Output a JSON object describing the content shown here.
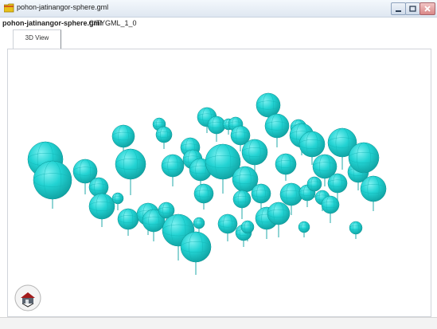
{
  "window": {
    "title": "pohon-jatinangor-sphere.gml",
    "app_icon": "folder-icon",
    "controls": [
      "minimize-icon",
      "maximize-icon",
      "close-icon"
    ]
  },
  "document": {
    "file_name": "pohon-jatinangor-sphere.gml",
    "format_suffix": " - CITYGML_1_0"
  },
  "tabs": [
    {
      "label": "3D View",
      "active": true
    }
  ],
  "viewport": {
    "background": "#ffffff",
    "sphere_color": "#22d3d3",
    "trunk_color": "#46b8b8",
    "navigation_widget": "house-navigation-icon"
  }
}
